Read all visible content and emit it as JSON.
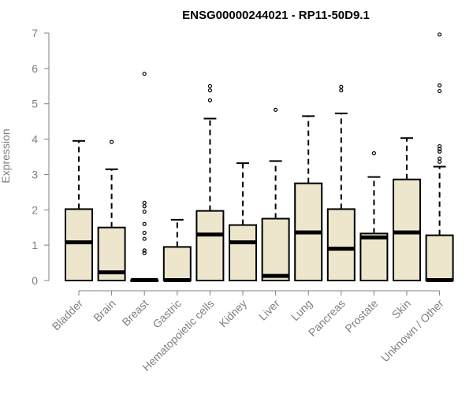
{
  "chart_data": {
    "type": "box",
    "title": "ENSG00000244021 - RP11-50D9.1",
    "xlabel": "",
    "ylabel": "Expression",
    "ylim": [
      0,
      7
    ],
    "yticks": [
      0,
      1,
      2,
      3,
      4,
      5,
      6,
      7
    ],
    "grid": false,
    "box_fill": "#ede6cc",
    "stroke": "#000000",
    "categories": [
      "Bladder",
      "Brain",
      "Breast",
      "Gastric",
      "Hematopoietic cells",
      "Kidney",
      "Liver",
      "Lung",
      "Pancreas",
      "Prostate",
      "Skin",
      "Unknown / Other"
    ],
    "boxes": [
      {
        "category": "Bladder",
        "min": 0,
        "q1": 0,
        "median": 1.08,
        "q3": 2.02,
        "max": 3.95,
        "outliers": []
      },
      {
        "category": "Brain",
        "min": 0,
        "q1": 0,
        "median": 0.23,
        "q3": 1.5,
        "max": 3.15,
        "outliers": [
          3.92
        ]
      },
      {
        "category": "Breast",
        "min": 0,
        "q1": 0,
        "median": 0.01,
        "q3": 0.01,
        "max": 0.01,
        "outliers": [
          0.78,
          0.85,
          1.18,
          1.35,
          1.6,
          1.95,
          2.1,
          2.2,
          5.85
        ]
      },
      {
        "category": "Gastric",
        "min": 0,
        "q1": 0,
        "median": 0.01,
        "q3": 0.95,
        "max": 1.72,
        "outliers": []
      },
      {
        "category": "Hematopoietic cells",
        "min": 0,
        "q1": 0,
        "median": 1.3,
        "q3": 1.97,
        "max": 4.58,
        "outliers": [
          5.1,
          5.38,
          5.5
        ]
      },
      {
        "category": "Kidney",
        "min": 0,
        "q1": 0,
        "median": 1.08,
        "q3": 1.57,
        "max": 3.32,
        "outliers": []
      },
      {
        "category": "Liver",
        "min": 0,
        "q1": 0,
        "median": 0.13,
        "q3": 1.75,
        "max": 3.38,
        "outliers": [
          4.83
        ]
      },
      {
        "category": "Lung",
        "min": 0,
        "q1": 0,
        "median": 1.36,
        "q3": 2.75,
        "max": 4.65,
        "outliers": []
      },
      {
        "category": "Pancreas",
        "min": 0,
        "q1": 0,
        "median": 0.9,
        "q3": 2.02,
        "max": 4.73,
        "outliers": [
          5.38,
          5.48
        ]
      },
      {
        "category": "Prostate",
        "min": 0,
        "q1": 0,
        "median": 1.22,
        "q3": 1.33,
        "max": 2.93,
        "outliers": [
          3.6
        ]
      },
      {
        "category": "Skin",
        "min": 0,
        "q1": 0,
        "median": 1.36,
        "q3": 2.86,
        "max": 4.03,
        "outliers": []
      },
      {
        "category": "Unknown / Other",
        "min": 0,
        "q1": 0,
        "median": 0.01,
        "q3": 1.28,
        "max": 3.22,
        "outliers": [
          3.36,
          3.45,
          3.65,
          3.72,
          3.8,
          5.36,
          5.52,
          6.96
        ]
      }
    ]
  }
}
